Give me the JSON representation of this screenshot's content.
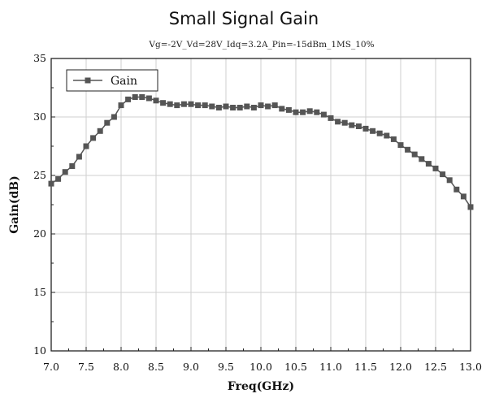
{
  "chart_data": {
    "type": "line",
    "title": "Small Signal Gain",
    "subtitle": "Vg=-2V_Vd=28V_Idq=3.2A_Pin=-15dBm_1MS_10%",
    "xlabel": "Freq(GHz)",
    "ylabel": "Gain(dB)",
    "xlim": [
      7.0,
      13.0
    ],
    "ylim": [
      10,
      35
    ],
    "x_ticks": [
      "7.0",
      "7.5",
      "8.0",
      "8.5",
      "9.0",
      "9.5",
      "10.0",
      "10.5",
      "11.0",
      "11.5",
      "12.0",
      "12.5",
      "13.0"
    ],
    "y_ticks": [
      "10",
      "15",
      "20",
      "25",
      "30",
      "35"
    ],
    "grid": true,
    "legend_position": "top-left",
    "series": [
      {
        "name": "Gain",
        "color": "#555555",
        "marker": "square",
        "x": [
          7.0,
          7.1,
          7.2,
          7.3,
          7.4,
          7.5,
          7.6,
          7.7,
          7.8,
          7.9,
          8.0,
          8.1,
          8.2,
          8.3,
          8.4,
          8.5,
          8.6,
          8.7,
          8.8,
          8.9,
          9.0,
          9.1,
          9.2,
          9.3,
          9.4,
          9.5,
          9.6,
          9.7,
          9.8,
          9.9,
          10.0,
          10.1,
          10.2,
          10.3,
          10.4,
          10.5,
          10.6,
          10.7,
          10.8,
          10.9,
          11.0,
          11.1,
          11.2,
          11.3,
          11.4,
          11.5,
          11.6,
          11.7,
          11.8,
          11.9,
          12.0,
          12.1,
          12.2,
          12.3,
          12.4,
          12.5,
          12.6,
          12.7,
          12.8,
          12.9,
          13.0
        ],
        "values": [
          24.3,
          24.7,
          25.3,
          25.8,
          26.6,
          27.5,
          28.2,
          28.8,
          29.5,
          30.0,
          31.0,
          31.5,
          31.7,
          31.7,
          31.6,
          31.4,
          31.2,
          31.1,
          31.0,
          31.1,
          31.1,
          31.0,
          31.0,
          30.9,
          30.8,
          30.9,
          30.8,
          30.8,
          30.9,
          30.8,
          31.0,
          30.9,
          31.0,
          30.7,
          30.6,
          30.4,
          30.4,
          30.5,
          30.4,
          30.2,
          29.9,
          29.6,
          29.5,
          29.3,
          29.2,
          29.0,
          28.8,
          28.6,
          28.4,
          28.1,
          27.6,
          27.2,
          26.8,
          26.4,
          26.0,
          25.6,
          25.1,
          24.6,
          23.8,
          23.2,
          22.3
        ]
      }
    ]
  }
}
